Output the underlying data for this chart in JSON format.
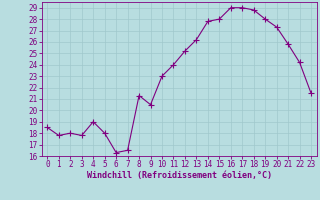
{
  "x": [
    0,
    1,
    2,
    3,
    4,
    5,
    6,
    7,
    8,
    9,
    10,
    11,
    12,
    13,
    14,
    15,
    16,
    17,
    18,
    19,
    20,
    21,
    22,
    23
  ],
  "y": [
    18.5,
    17.8,
    18.0,
    17.8,
    19.0,
    18.0,
    16.3,
    16.5,
    21.3,
    20.5,
    23.0,
    24.0,
    25.2,
    26.2,
    27.8,
    28.0,
    29.0,
    29.0,
    28.8,
    28.0,
    27.3,
    25.8,
    24.2,
    21.5
  ],
  "line_color": "#800080",
  "marker": "+",
  "marker_size": 4,
  "bg_color": "#b8dde0",
  "grid_color": "#a0c8cc",
  "xlabel": "Windchill (Refroidissement éolien,°C)",
  "ylim": [
    16,
    29.5
  ],
  "yticks": [
    16,
    17,
    18,
    19,
    20,
    21,
    22,
    23,
    24,
    25,
    26,
    27,
    28,
    29
  ],
  "xticks": [
    0,
    1,
    2,
    3,
    4,
    5,
    6,
    7,
    8,
    9,
    10,
    11,
    12,
    13,
    14,
    15,
    16,
    17,
    18,
    19,
    20,
    21,
    22,
    23
  ],
  "tick_color": "#800080",
  "label_color": "#800080",
  "font_size": 5.5,
  "xlabel_font_size": 6.0,
  "lw": 0.8
}
